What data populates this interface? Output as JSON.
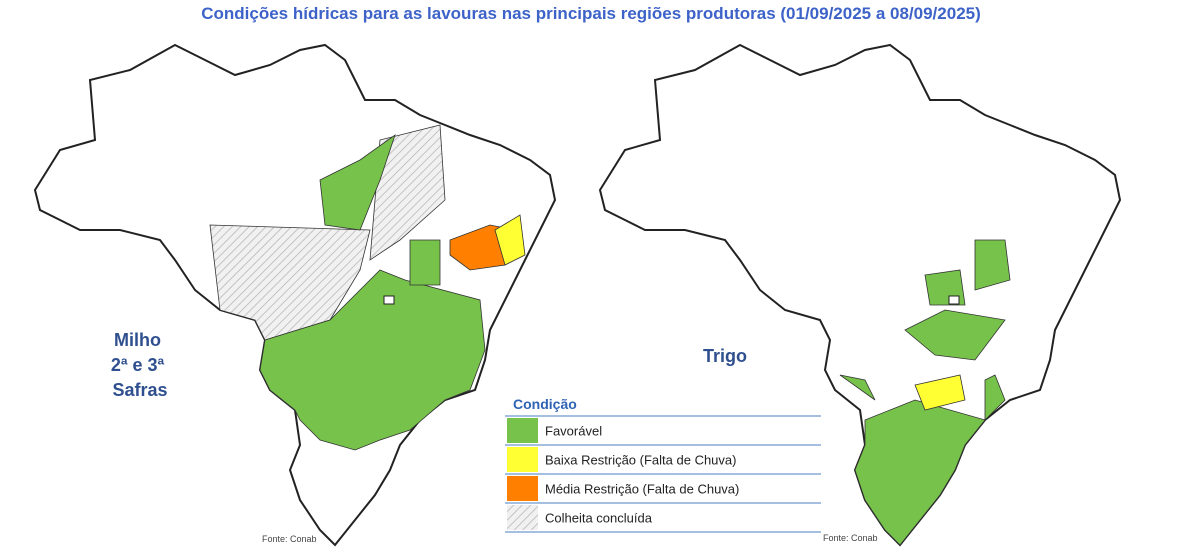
{
  "title": "Condições hídricas para as lavouras nas principais regiões produtoras (01/09/2025 a 08/09/2025)",
  "maps": [
    {
      "label": [
        "Milho",
        "2ª e 3ª",
        "Safras"
      ],
      "source": "Fonte: Conab"
    },
    {
      "label": [
        "Trigo"
      ],
      "source": "Fonte: Conab"
    }
  ],
  "legend": {
    "title": "Condição",
    "items": [
      {
        "label": "Favorável",
        "color": "#77c24b"
      },
      {
        "label": "Baixa Restrição (Falta de Chuva)",
        "color": "#ffff33"
      },
      {
        "label": "Média Restrição (Falta de Chuva)",
        "color": "#ff8000"
      },
      {
        "label": "Colheita concluída",
        "color": "hatch"
      }
    ]
  }
}
